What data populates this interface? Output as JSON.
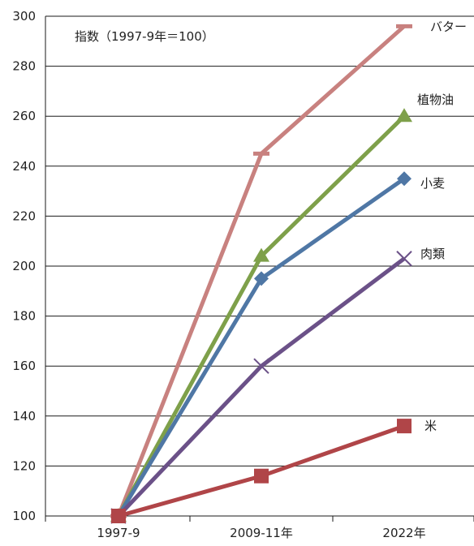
{
  "chart_data": {
    "type": "line",
    "note": "指数（1997-9年＝100）",
    "categories": [
      "1997-9",
      "2009-11年",
      "2022年"
    ],
    "ylim": [
      100,
      300
    ],
    "yticks": [
      100,
      120,
      140,
      160,
      180,
      200,
      220,
      240,
      260,
      280,
      300
    ],
    "grid": true,
    "series": [
      {
        "name": "バター",
        "values": [
          100,
          245,
          296
        ],
        "color": "#c8817f",
        "marker": "dash"
      },
      {
        "name": "植物油",
        "values": [
          100,
          204,
          260
        ],
        "color": "#7ea04a",
        "marker": "triangle"
      },
      {
        "name": "小麦",
        "values": [
          100,
          195,
          235
        ],
        "color": "#4f77a5",
        "marker": "diamond"
      },
      {
        "name": "肉類",
        "values": [
          100,
          160,
          203
        ],
        "color": "#6b5188",
        "marker": "x"
      },
      {
        "name": "米",
        "values": [
          100,
          116,
          136
        ],
        "color": "#b04548",
        "marker": "square"
      }
    ]
  }
}
